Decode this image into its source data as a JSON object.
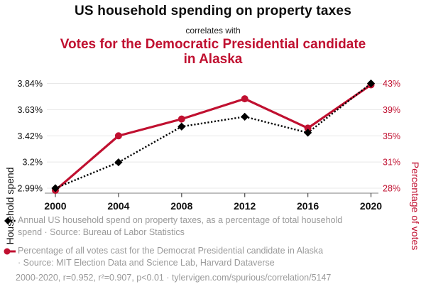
{
  "header": {
    "title": "US household spending on property taxes",
    "connector": "correlates with",
    "subtitle": "Votes for the Democratic Presidential candidate in Alaska"
  },
  "chart_data": {
    "type": "line",
    "x": [
      2000,
      2004,
      2008,
      2012,
      2016,
      2020
    ],
    "x_tick_labels": [
      "2000",
      "2004",
      "2008",
      "2012",
      "2016",
      "2020"
    ],
    "series": [
      {
        "name": "Annual US household spend on property taxes, as a percentage of total household spend",
        "axis": "left",
        "color": "#000000",
        "marker": "diamond",
        "line_style": "dotted",
        "values": [
          2.99,
          3.2,
          3.49,
          3.57,
          3.44,
          3.84
        ]
      },
      {
        "name": "Percentage of all votes cast for the Democrat Presidential candidate in Alaska",
        "axis": "right",
        "color": "#c01030",
        "marker": "circle",
        "line_style": "solid",
        "values": [
          27.7,
          35.5,
          37.9,
          40.8,
          36.6,
          42.8
        ]
      }
    ],
    "left_axis": {
      "label": "Household spend",
      "ticks": [
        "3.84%",
        "3.63%",
        "3.42%",
        "3.2%",
        "2.99%"
      ],
      "range": [
        2.99,
        3.84
      ]
    },
    "right_axis": {
      "label": "Percentage of votes",
      "ticks": [
        "43%",
        "39%",
        "35%",
        "31%",
        "28%"
      ],
      "range": [
        28,
        43
      ]
    },
    "grid": "horizontal",
    "legend_position": "bottom"
  },
  "legend": {
    "items": [
      {
        "marker": "black-diamond-dotted-line",
        "text": "Annual US household spend on property taxes, as a percentage of total household\nspend · Source: Bureau of Labor Statistics"
      },
      {
        "marker": "red-circle-solid-line",
        "text": "Percentage of all votes cast for the Democrat Presidential candidate in Alaska\n· Source: MIT Election Data and Science Lab, Harvard Dataverse"
      }
    ]
  },
  "footer": {
    "text": "2000-2020, r=0.952, r²=0.907, p<0.01 · tylervigen.com/spurious/correlation/5147"
  },
  "colors": {
    "accent_red": "#c01030",
    "text_gray": "#9a9a9a",
    "grid": "#e8e8e8",
    "axis": "#999999",
    "tick": "#555555",
    "text_dark": "#111111"
  }
}
